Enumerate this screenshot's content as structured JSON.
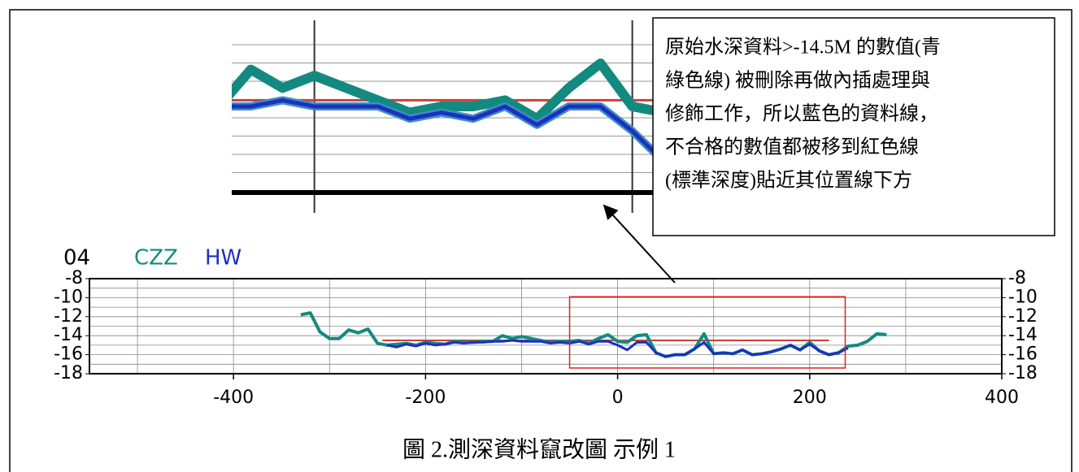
{
  "chart_data": [
    {
      "type": "line",
      "title": "04",
      "series": [
        {
          "name": "CZZ",
          "color": "#138a80",
          "x": [
            -330,
            -320,
            -310,
            -300,
            -290,
            -280,
            -270,
            -260,
            -250,
            -240,
            -230,
            -220,
            -210,
            -200,
            -190,
            -180,
            -170,
            -160,
            -150,
            -140,
            -130,
            -120,
            -110,
            -100,
            -90,
            -80,
            -70,
            -60,
            -50,
            -40,
            -30,
            -20,
            -10,
            0,
            10,
            20,
            30,
            40,
            50,
            60,
            70,
            80,
            90,
            100,
            110,
            120,
            130,
            140,
            150,
            160,
            170,
            180,
            190,
            200,
            210,
            220,
            230,
            240,
            250,
            260,
            270,
            280
          ],
          "values": [
            -11.8,
            -11.6,
            -13.6,
            -14.3,
            -14.3,
            -13.4,
            -13.7,
            -13.3,
            -14.8,
            -15.0,
            -14.9,
            -14.8,
            -15.0,
            -14.7,
            -14.8,
            -14.9,
            -14.6,
            -14.7,
            -14.7,
            -14.6,
            -14.6,
            -14.0,
            -14.3,
            -14.1,
            -14.3,
            -14.5,
            -14.7,
            -14.6,
            -14.6,
            -14.5,
            -14.8,
            -14.3,
            -13.9,
            -14.6,
            -14.7,
            -14.0,
            -13.9,
            -15.8,
            -16.2,
            -16.0,
            -16.0,
            -15.4,
            -13.8,
            -15.9,
            -15.8,
            -15.9,
            -15.5,
            -16.0,
            -15.9,
            -15.7,
            -15.4,
            -15.0,
            -15.5,
            -14.7,
            -15.6,
            -16.0,
            -15.8,
            -15.1,
            -15.0,
            -14.6,
            -13.8,
            -13.9
          ]
        },
        {
          "name": "HW",
          "color": "#1c2fc2",
          "x": [
            -240,
            -230,
            -220,
            -210,
            -200,
            -190,
            -180,
            -170,
            -160,
            -150,
            -140,
            -130,
            -120,
            -110,
            -100,
            -90,
            -80,
            -70,
            -60,
            -50,
            -40,
            -30,
            -20,
            -10,
            0,
            10,
            20,
            30,
            40,
            50,
            60,
            70,
            80,
            90,
            100,
            110,
            120,
            130,
            140,
            150,
            160,
            170,
            180,
            190,
            200,
            210,
            220,
            230,
            240
          ],
          "values": [
            -15.0,
            -15.2,
            -14.9,
            -15.1,
            -14.8,
            -15.0,
            -14.9,
            -14.7,
            -14.8,
            -14.7,
            -14.7,
            -14.6,
            -14.6,
            -14.5,
            -14.6,
            -14.6,
            -14.6,
            -14.8,
            -14.7,
            -14.8,
            -14.6,
            -14.9,
            -14.6,
            -14.6,
            -15.0,
            -15.5,
            -14.7,
            -14.7,
            -15.8,
            -16.2,
            -16.0,
            -16.0,
            -15.4,
            -14.7,
            -15.9,
            -15.8,
            -15.9,
            -15.5,
            -16.0,
            -15.9,
            -15.7,
            -15.4,
            -15.0,
            -15.5,
            -14.9,
            -15.6,
            -16.0,
            -15.8,
            -15.3
          ]
        }
      ],
      "reference_line": {
        "value": -14.5,
        "x": [
          -245,
          220
        ],
        "color": "#c8403a"
      },
      "highlight": {
        "xlim": [
          -50,
          237
        ],
        "ylim": [
          -17.4,
          -9.9
        ],
        "color": "#e02020"
      },
      "xlim": [
        -550,
        400
      ],
      "xticks": [
        -400,
        -200,
        0,
        200,
        400
      ],
      "ylim": [
        -18,
        -8
      ],
      "yticks": [
        -8,
        -10,
        -12,
        -14,
        -16,
        -18
      ],
      "grid": true
    },
    {
      "type": "zoom",
      "xlim": [
        -126,
        7
      ],
      "ylim": [
        -16,
        -13.2
      ],
      "xticks": [
        -100,
        0
      ]
    }
  ],
  "annotation": [
    "原始水深資料>-14.5M 的數值(青",
    "綠色線) 被刪除再做內插處理與",
    "修飾工作，所以藍色的資料線，",
    "不合格的數值都被移到紅色線",
    "(標準深度)貼近其位置線下方"
  ],
  "caption": "圖 2.測深資料竄改圖 示例 1"
}
